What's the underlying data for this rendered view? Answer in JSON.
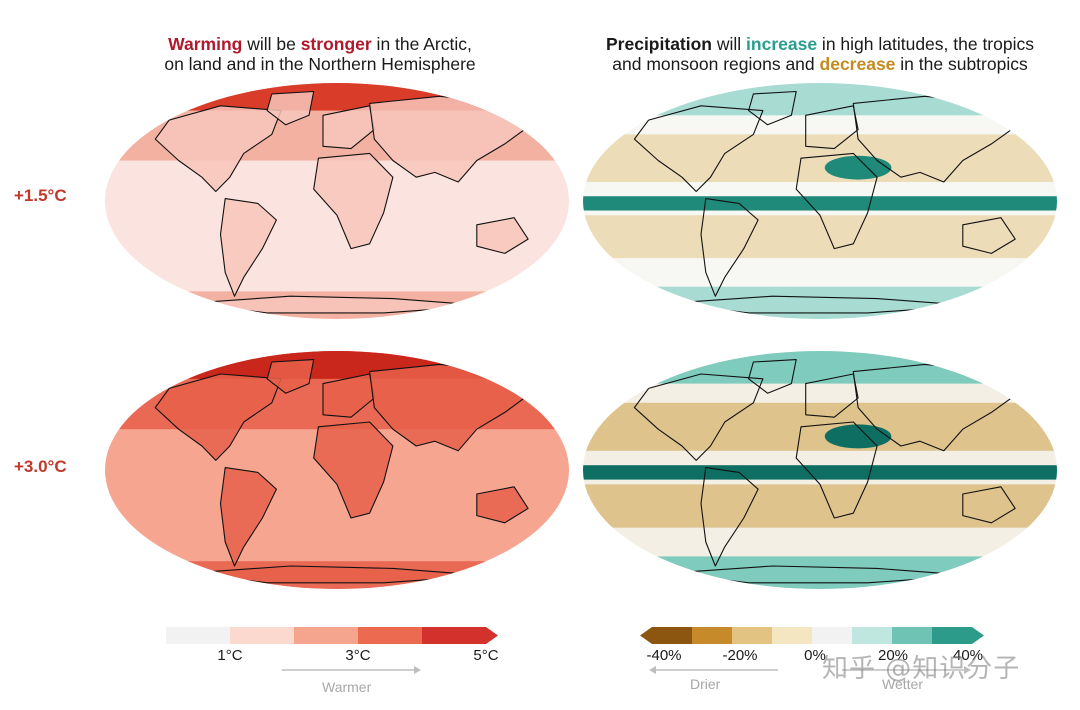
{
  "titles": {
    "left": {
      "w1": "Warming",
      "w2": " will be ",
      "w3": "stronger",
      "w4": " in the Arctic,",
      "line2": "on land and in the Northern Hemisphere"
    },
    "right": {
      "w1": "Precipitation",
      "w2": " will ",
      "w3": "increase",
      "w4": " in high latitudes, the tropics",
      "l2a": "and monsoon regions and ",
      "l2b": "decrease",
      "l2c": " in the subtropics"
    }
  },
  "rows": [
    {
      "label": "+1.5°C"
    },
    {
      "label": "+3.0°C"
    }
  ],
  "maps": {
    "warming_15": {
      "base": "#fbe3df",
      "north": "#ef9b86",
      "arctic": "#d93d2a",
      "land": "#f7c6bb"
    },
    "warming_30": {
      "base": "#f6a591",
      "north": "#e4503a",
      "arctic": "#c9261c",
      "land": "#e8604a"
    },
    "precip_15": {
      "base": "#f7f7f4",
      "wet": "#a8dcd3",
      "dry": "#e8d3a4",
      "band": "#1f8a7a"
    },
    "precip_30": {
      "base": "#f3efe5",
      "wet": "#7fcbbd",
      "dry": "#d7b46e",
      "band": "#0e6e62"
    }
  },
  "legend_warming": {
    "colors": [
      "#f2f2f2",
      "#fbd9cf",
      "#f5a48d",
      "#ec6a4f",
      "#d2322b"
    ],
    "ticks": [
      "1°C",
      "3°C",
      "5°C"
    ],
    "arrow_label": "Warmer"
  },
  "legend_precip": {
    "colors": [
      "#8c5510",
      "#c68a2a",
      "#e2c381",
      "#f4e6c1",
      "#f2f2f2",
      "#bfe6df",
      "#6fc3b4",
      "#2c9b8a"
    ],
    "ticks": [
      "-40%",
      "-20%",
      "0%",
      "20%",
      "40%"
    ],
    "arrow_left": "Drier",
    "arrow_right": "Wetter"
  },
  "watermark": "知乎 @知识分子"
}
